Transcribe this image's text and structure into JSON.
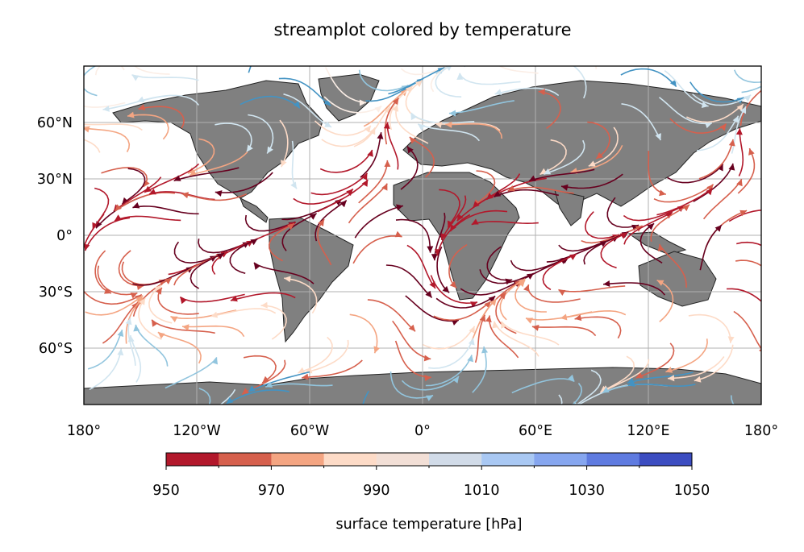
{
  "figure": {
    "title": "streamplot colored by temperature"
  },
  "map": {
    "projection": "PlateCarree",
    "lon_range": [
      -180,
      180
    ],
    "lat_range": [
      -90,
      90
    ],
    "land_color": "#808080",
    "ocean_color": "#ffffff",
    "gridlines": true,
    "lon_tick_labels": [
      "180°",
      "120°W",
      "60°W",
      "0°",
      "60°E",
      "120°E",
      "180°"
    ],
    "lat_tick_labels": [
      "60°N",
      "30°N",
      "0°",
      "30°S",
      "60°S"
    ]
  },
  "colorbar": {
    "label": "surface temperature [hPa]",
    "tick_labels": [
      "950",
      "970",
      "990",
      "1010",
      "1030",
      "1050"
    ],
    "min": 950,
    "max": 1050,
    "step": 10,
    "colors": [
      "#b2182b",
      "#d6604d",
      "#f4a582",
      "#fddbc7",
      "#f2dfd6",
      "#d1dbe8",
      "#a9c8f3",
      "#86a6ef",
      "#5f7be0",
      "#3c4dc1"
    ]
  },
  "streamplot": {
    "colormap": "RdBu",
    "warm_color": "#b2182b",
    "cool_color": "#4393c3"
  }
}
